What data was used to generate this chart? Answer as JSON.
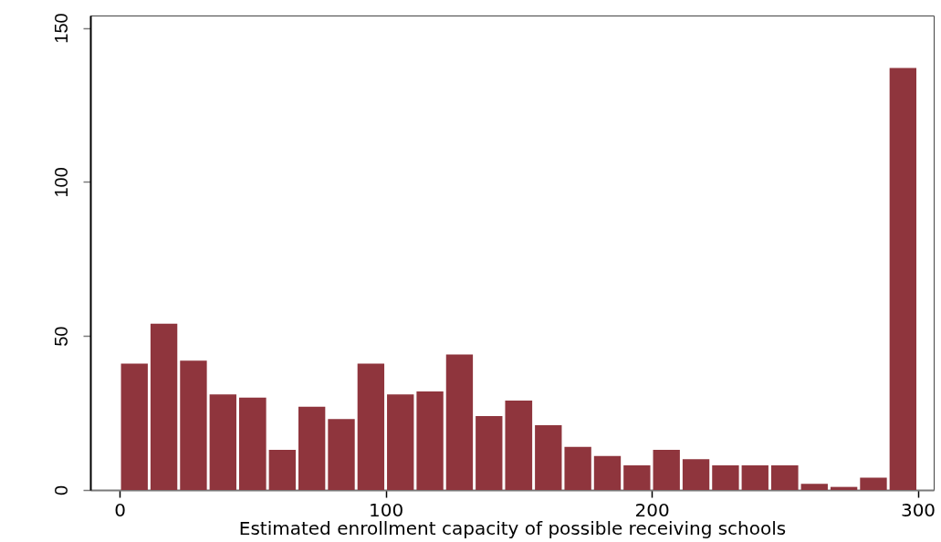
{
  "chart_data": {
    "type": "histogram",
    "xlabel": "Estimated enrollment capacity of possible receiving schools",
    "bins": [
      0,
      11.1,
      22.2,
      33.3,
      44.4,
      55.6,
      66.7,
      77.8,
      88.9,
      100,
      111.1,
      122.2,
      133.3,
      144.4,
      155.6,
      166.7,
      177.8,
      188.9,
      200,
      211.1,
      222.2,
      233.3,
      244.4,
      255.6,
      266.7,
      277.8,
      288.9,
      300
    ],
    "values": [
      41,
      54,
      42,
      31,
      30,
      13,
      27,
      23,
      41,
      31,
      32,
      44,
      24,
      29,
      21,
      14,
      11,
      8,
      13,
      10,
      8,
      8,
      8,
      2,
      1,
      4,
      137
    ],
    "color": "#8f353d",
    "xlim": [
      -11,
      306
    ],
    "xticks": [
      0,
      100,
      200,
      300
    ],
    "ylim": [
      0,
      154
    ],
    "yticks": [
      0,
      50,
      100,
      150
    ],
    "grid": false
  }
}
